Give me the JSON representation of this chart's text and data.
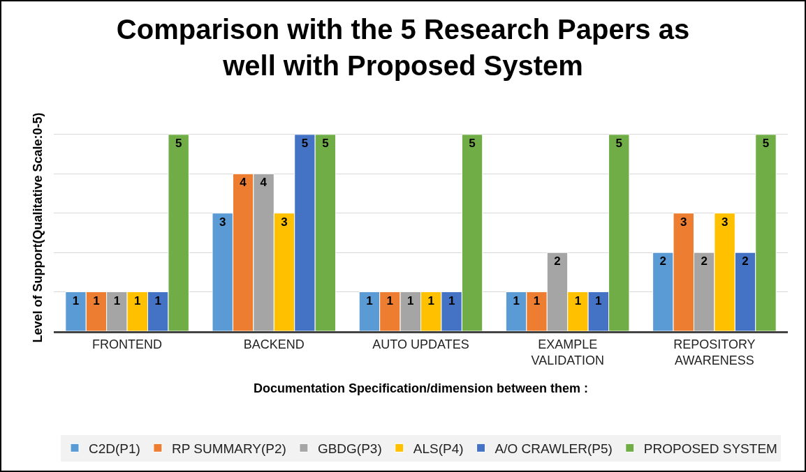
{
  "chart_data": {
    "type": "bar",
    "title": "Comparison with the 5 Research Papers as well with Proposed System",
    "xlabel": "Documentation Specification/dimension between them :",
    "ylabel": "Level of Support(Qualitative Scale:0-5)",
    "categories": [
      "FRONTEND",
      "BACKEND",
      "AUTO UPDATES",
      "EXAMPLE VALIDATION",
      "REPOSITORY AWARENESS"
    ],
    "series": [
      {
        "name": "C2D(P1)",
        "color": "#5b9bd5",
        "values": [
          1,
          3,
          1,
          1,
          2
        ]
      },
      {
        "name": "RP SUMMARY(P2)",
        "color": "#ed7d31",
        "values": [
          1,
          4,
          1,
          1,
          3
        ]
      },
      {
        "name": "GBDG(P3)",
        "color": "#a5a5a5",
        "values": [
          1,
          4,
          1,
          2,
          2
        ]
      },
      {
        "name": "ALS(P4)",
        "color": "#ffc000",
        "values": [
          1,
          3,
          1,
          1,
          3
        ]
      },
      {
        "name": "A/O CRAWLER(P5)",
        "color": "#4472c4",
        "values": [
          1,
          5,
          1,
          1,
          2
        ]
      },
      {
        "name": "PROPOSED SYSTEM",
        "color": "#70ad47",
        "values": [
          5,
          5,
          5,
          5,
          5
        ]
      }
    ],
    "tick_labels": "x",
    "grid": "y",
    "legend": "bottom",
    "data_labels": true
  }
}
